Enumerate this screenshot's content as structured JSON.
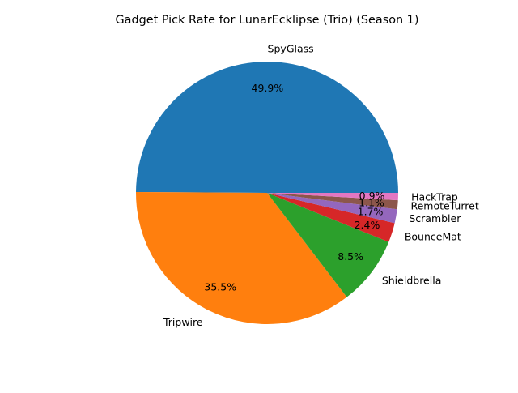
{
  "chart_data": {
    "type": "pie",
    "title": "Gadget Pick Rate for LunarEcklipse (Trio) (Season 1)",
    "slices": [
      {
        "label": "SpyGlass",
        "pct_label": "49.9%",
        "value": 49.9,
        "color": "#1f77b4"
      },
      {
        "label": "Tripwire",
        "pct_label": "35.5%",
        "value": 35.5,
        "color": "#ff7f0e"
      },
      {
        "label": "Shieldbrella",
        "pct_label": "8.5%",
        "value": 8.5,
        "color": "#2ca02c"
      },
      {
        "label": "BounceMat",
        "pct_label": "2.4%",
        "value": 2.4,
        "color": "#d62728"
      },
      {
        "label": "Scrambler",
        "pct_label": "1.7%",
        "value": 1.7,
        "color": "#9467bd"
      },
      {
        "label": "RemoteTurret",
        "pct_label": "1.1%",
        "value": 1.1,
        "color": "#8c564b"
      },
      {
        "label": "HackTrap",
        "pct_label": "0.9%",
        "value": 0.9,
        "color": "#e377c2"
      }
    ],
    "start_angle_deg": 0,
    "direction": "counterclockwise",
    "legend": "none"
  }
}
